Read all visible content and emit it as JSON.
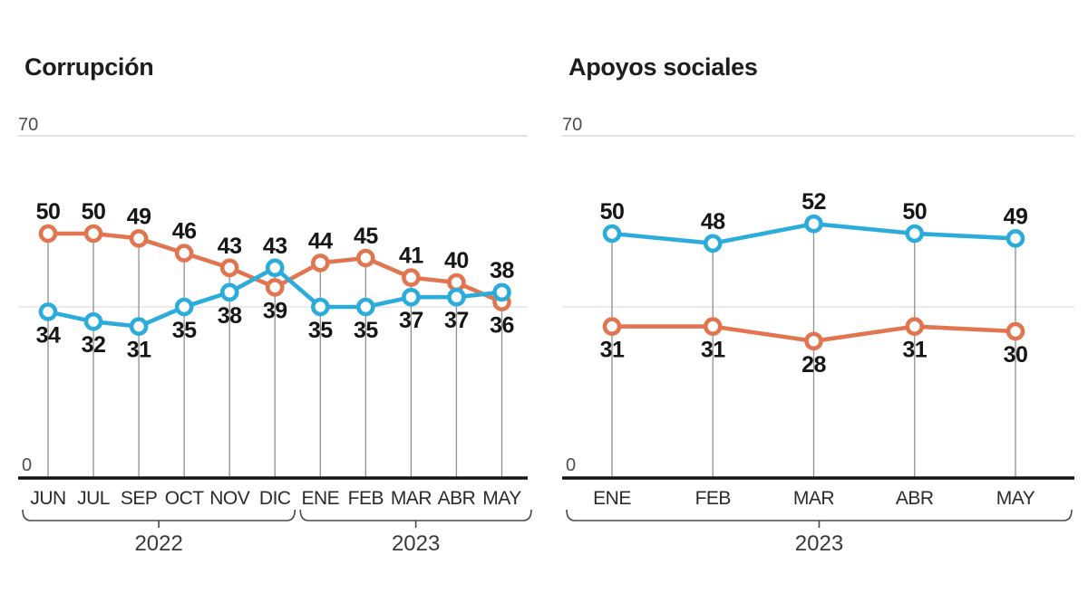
{
  "page": {
    "background": "#ffffff"
  },
  "colors": {
    "orange": "#E1754F",
    "blue": "#2BACDB",
    "marker_fill": "#ffffff",
    "grid_top": "#cfcfcf",
    "grid_mid": "#dddddd",
    "dropline": "#909090",
    "baseline": "#141414",
    "bracket": "#4a4a4a",
    "value_text": "#161616",
    "tick_text": "#4d4d4d",
    "month_text": "#2b2b2b",
    "year_text": "#3a3a3a"
  },
  "chart_data": [
    {
      "type": "line",
      "title": "Corrupción",
      "categories": [
        "JUN",
        "JUL",
        "SEP",
        "OCT",
        "NOV",
        "DIC",
        "ENE",
        "FEB",
        "MAR",
        "ABR",
        "MAY"
      ],
      "series": [
        {
          "name": "serie-naranja",
          "color": "#E1754F",
          "values": [
            50,
            50,
            49,
            46,
            43,
            39,
            44,
            45,
            41,
            40,
            36
          ]
        },
        {
          "name": "serie-azul",
          "color": "#2BACDB",
          "values": [
            34,
            32,
            31,
            35,
            38,
            43,
            35,
            35,
            37,
            37,
            38
          ]
        }
      ],
      "ylim": [
        0,
        70
      ],
      "ytick_labels": {
        "top": "70",
        "bottom": "0"
      },
      "midline_value": 35,
      "legend": "none",
      "year_groups": [
        {
          "label": "2022",
          "start_index": 0,
          "end_index": 5
        },
        {
          "label": "2023",
          "start_index": 6,
          "end_index": 10
        }
      ]
    },
    {
      "type": "line",
      "title": "Apoyos sociales",
      "categories": [
        "ENE",
        "FEB",
        "MAR",
        "ABR",
        "MAY"
      ],
      "series": [
        {
          "name": "serie-azul",
          "color": "#2BACDB",
          "values": [
            50,
            48,
            52,
            50,
            49
          ]
        },
        {
          "name": "serie-naranja",
          "color": "#E1754F",
          "values": [
            31,
            31,
            28,
            31,
            30
          ]
        }
      ],
      "ylim": [
        0,
        70
      ],
      "ytick_labels": {
        "top": "70",
        "bottom": "0"
      },
      "midline_value": 35,
      "legend": "none",
      "year_groups": [
        {
          "label": "2023",
          "start_index": 0,
          "end_index": 4
        }
      ]
    }
  ]
}
